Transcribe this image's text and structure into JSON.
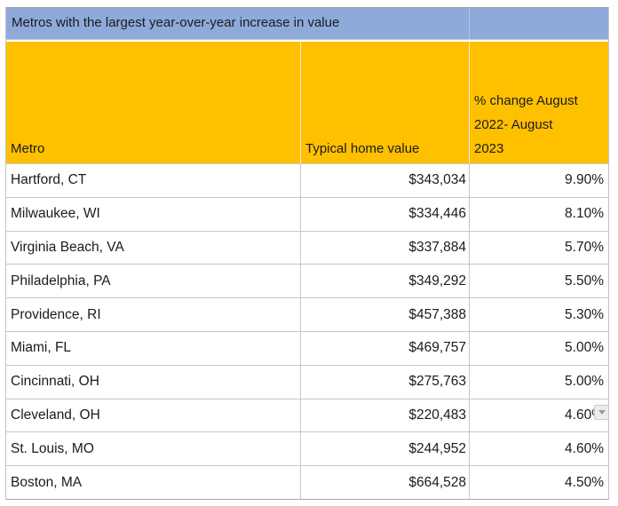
{
  "colors": {
    "title_bar_bg": "#8EAADB",
    "header_bg": "#FFC000",
    "grid_line": "#C6C6C6",
    "text": "#1B1B1B"
  },
  "icons": {
    "cleveland_cell_overlay": "chevron-down-icon"
  },
  "chart_data": {
    "type": "table",
    "title": "Metros with the largest year-over-year increase in value",
    "columns": [
      "Metro",
      "Typical home value",
      "% change August 2022- August 2023"
    ],
    "columns_display": [
      "Metro",
      "Typical home value",
      "% change August\n2022- August\n2023"
    ],
    "rows": [
      [
        "Hartford, CT",
        "$343,034",
        "9.90%"
      ],
      [
        "Milwaukee, WI",
        "$334,446",
        "8.10%"
      ],
      [
        "Virginia Beach, VA",
        "$337,884",
        "5.70%"
      ],
      [
        "Philadelphia, PA",
        "$349,292",
        "5.50%"
      ],
      [
        "Providence, RI",
        "$457,388",
        "5.30%"
      ],
      [
        "Miami, FL",
        "$469,757",
        "5.00%"
      ],
      [
        "Cincinnati, OH",
        "$275,763",
        "5.00%"
      ],
      [
        "Cleveland, OH",
        "$220,483",
        "4.60%"
      ],
      [
        "St. Louis, MO",
        "$244,952",
        "4.60%"
      ],
      [
        "Boston, MA",
        "$664,528",
        "4.50%"
      ]
    ],
    "home_values_numeric": [
      343034,
      334446,
      337884,
      349292,
      457388,
      469757,
      275763,
      220483,
      244952,
      664528
    ],
    "pct_change_numeric": [
      9.9,
      8.1,
      5.7,
      5.5,
      5.3,
      5.0,
      5.0,
      4.6,
      4.6,
      4.5
    ]
  }
}
